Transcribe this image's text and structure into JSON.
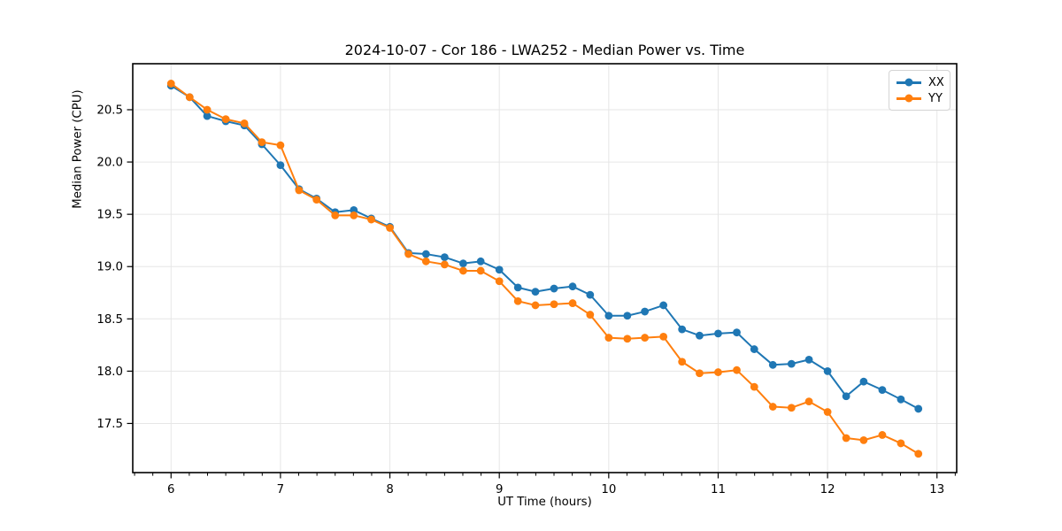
{
  "title": "2024-10-07 - Cor 186 - LWA252 - Median Power vs. Time",
  "chart_data": {
    "type": "line",
    "title": "2024-10-07 - Cor 186 - LWA252 - Median Power vs. Time",
    "xlabel": "UT Time (hours)",
    "ylabel": "Median Power (CPU)",
    "xlim": [
      5.65,
      13.18
    ],
    "ylim": [
      17.03,
      20.94
    ],
    "xticks": [
      6,
      7,
      8,
      9,
      10,
      11,
      12,
      13
    ],
    "yticks": [
      17.5,
      18.0,
      18.5,
      19.0,
      19.5,
      20.0,
      20.5
    ],
    "x_minor_step": 0.1667,
    "grid": true,
    "grid_color": "#e6e6e6",
    "legend_position": "upper right",
    "x": [
      6.0,
      6.17,
      6.33,
      6.5,
      6.67,
      6.83,
      7.0,
      7.17,
      7.33,
      7.5,
      7.67,
      7.83,
      8.0,
      8.17,
      8.33,
      8.5,
      8.67,
      8.83,
      9.0,
      9.17,
      9.33,
      9.5,
      9.67,
      9.83,
      10.0,
      10.17,
      10.33,
      10.5,
      10.67,
      10.83,
      11.0,
      11.17,
      11.33,
      11.5,
      11.67,
      11.83,
      12.0,
      12.17,
      12.33,
      12.5,
      12.67,
      12.83
    ],
    "series": [
      {
        "name": "XX",
        "color": "#1f77b4",
        "values": [
          20.73,
          20.62,
          20.44,
          20.39,
          20.35,
          20.17,
          19.97,
          19.74,
          19.65,
          19.52,
          19.54,
          19.46,
          19.38,
          19.13,
          19.12,
          19.09,
          19.03,
          19.05,
          18.97,
          18.8,
          18.76,
          18.79,
          18.81,
          18.73,
          18.53,
          18.53,
          18.57,
          18.63,
          18.4,
          18.34,
          18.36,
          18.37,
          18.21,
          18.06,
          18.07,
          18.11,
          18.0,
          17.76,
          17.9,
          17.82,
          17.73,
          17.64
        ]
      },
      {
        "name": "YY",
        "color": "#ff7f0e",
        "values": [
          20.75,
          20.62,
          20.5,
          20.41,
          20.37,
          20.19,
          20.16,
          19.73,
          19.64,
          19.49,
          19.49,
          19.45,
          19.37,
          19.12,
          19.05,
          19.02,
          18.96,
          18.96,
          18.86,
          18.67,
          18.63,
          18.64,
          18.65,
          18.54,
          18.32,
          18.31,
          18.32,
          18.33,
          18.09,
          17.98,
          17.99,
          18.01,
          17.85,
          17.66,
          17.65,
          17.71,
          17.61,
          17.36,
          17.34,
          17.39,
          17.31,
          17.21
        ]
      }
    ]
  }
}
